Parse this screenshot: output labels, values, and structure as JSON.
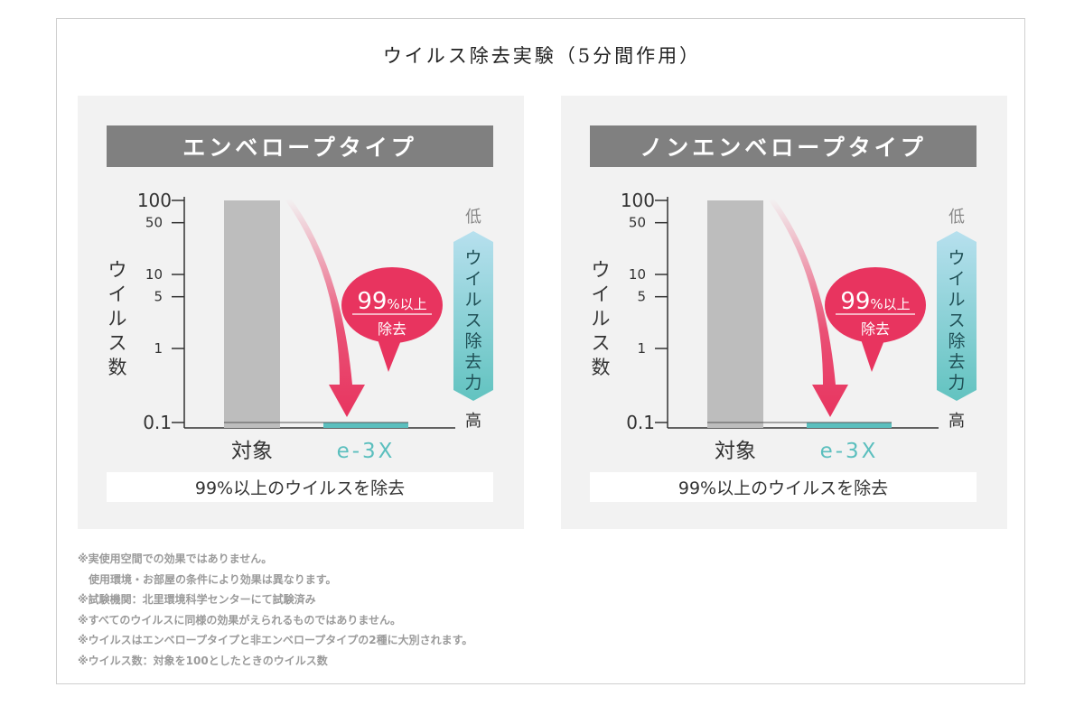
{
  "title": "ウイルス除去実験（5分間作用）",
  "colors": {
    "control_bar": "#bdbdbd",
    "product_bar": "#5bbfbe",
    "arrow": "#e8345f",
    "bubble": "#e8345f",
    "scale_top": "#b7e0ee",
    "scale_bottom": "#62c3c0",
    "header_bg": "#808080"
  },
  "chart_data": [
    {
      "type": "bar",
      "title": "エンベロープタイプ",
      "ylabel": "ウイルス数",
      "yscale": "log",
      "ylim": [
        0.1,
        100
      ],
      "yticks": [
        100,
        50,
        10,
        5,
        1,
        0.1
      ],
      "ytick_labels": [
        "100",
        "50",
        "10",
        "5",
        "1",
        "0.1"
      ],
      "categories": [
        "対象",
        "e-3X"
      ],
      "values": [
        100,
        0.1
      ],
      "annotation": {
        "main": "99",
        "unit": "%以上",
        "sub": "除去"
      },
      "scale": {
        "top": "低",
        "label": "ウイルス除去力",
        "bottom": "高"
      },
      "caption": "99%以上のウイルスを除去",
      "grid": false
    },
    {
      "type": "bar",
      "title": "ノンエンベロープタイプ",
      "ylabel": "ウイルス数",
      "yscale": "log",
      "ylim": [
        0.1,
        100
      ],
      "yticks": [
        100,
        50,
        10,
        5,
        1,
        0.1
      ],
      "ytick_labels": [
        "100",
        "50",
        "10",
        "5",
        "1",
        "0.1"
      ],
      "categories": [
        "対象",
        "e-3X"
      ],
      "values": [
        100,
        0.1
      ],
      "annotation": {
        "main": "99",
        "unit": "%以上",
        "sub": "除去"
      },
      "scale": {
        "top": "低",
        "label": "ウイルス除去力",
        "bottom": "高"
      },
      "caption": "99%以上のウイルスを除去",
      "grid": false
    }
  ],
  "notes": [
    "※実使用空間での効果ではありません。",
    "使用環境・お部屋の条件により効果は異なります。",
    "※試験機関：北里環境科学センターにて試験済み",
    "※すべてのウイルスに同様の効果がえられるものではありません。",
    "※ウイルスはエンベロープタイプと非エンベロープタイプの2種に大別されます。",
    "※ウイルス数：対象を100としたときのウイルス数"
  ]
}
